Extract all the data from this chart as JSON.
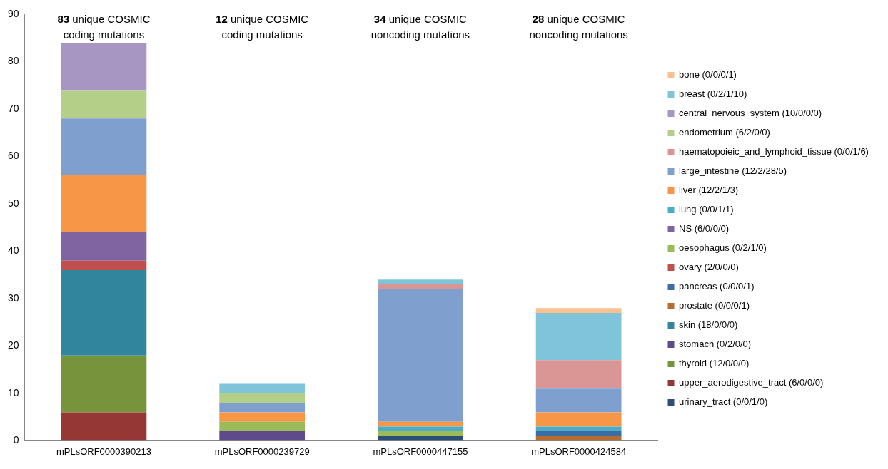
{
  "chart_data": {
    "type": "bar",
    "stacked": true,
    "categories": [
      "mPLsORF0000390213",
      "mPLsORF0000239729",
      "mPLsORF0000447155",
      "mPLsORF0000424584"
    ],
    "ylim": [
      0,
      90
    ],
    "yticks": [
      0,
      10,
      20,
      30,
      40,
      50,
      60,
      70,
      80,
      90
    ],
    "grid": false,
    "legend": "right",
    "annotations": [
      "83 unique COSMIC coding mutations",
      "12 unique COSMIC coding mutations",
      "34 unique COSMIC noncoding mutations",
      "28 unique COSMIC noncoding mutations"
    ],
    "series": [
      {
        "name": "urinary_tract (0/0/1/0)",
        "color": "#2c4d75",
        "values": [
          0,
          0,
          1,
          0
        ]
      },
      {
        "name": "upper_aerodigestive_tract (6/0/0/0)",
        "color": "#953735",
        "values": [
          6,
          0,
          0,
          0
        ]
      },
      {
        "name": "thyroid (12/0/0/0)",
        "color": "#77933c",
        "values": [
          12,
          0,
          0,
          0
        ]
      },
      {
        "name": "stomach (0/2/0/0)",
        "color": "#5f4b8b",
        "values": [
          0,
          2,
          0,
          0
        ]
      },
      {
        "name": "skin (18/0/0/0)",
        "color": "#31859c",
        "values": [
          18,
          0,
          0,
          0
        ]
      },
      {
        "name": "prostate (0/0/0/1)",
        "color": "#b66d31",
        "values": [
          0,
          0,
          0,
          1
        ]
      },
      {
        "name": "pancreas (0/0/0/1)",
        "color": "#3a6ea5",
        "values": [
          0,
          0,
          0,
          1
        ]
      },
      {
        "name": "ovary (2/0/0/0)",
        "color": "#c0504d",
        "values": [
          2,
          0,
          0,
          0
        ]
      },
      {
        "name": "oesophagus (0/2/1/0)",
        "color": "#9bbb59",
        "values": [
          0,
          2,
          1,
          0
        ]
      },
      {
        "name": "NS (6/0/0/0)",
        "color": "#8064a2",
        "values": [
          6,
          0,
          0,
          0
        ]
      },
      {
        "name": "lung (0/0/1/1)",
        "color": "#4bacc6",
        "values": [
          0,
          0,
          1,
          1
        ]
      },
      {
        "name": "liver (12/2/1/3)",
        "color": "#f79646",
        "values": [
          12,
          2,
          1,
          3
        ]
      },
      {
        "name": "large_intestine (12/2/28/5)",
        "color": "#7f9fcf",
        "values": [
          12,
          2,
          28,
          5
        ]
      },
      {
        "name": "haematopoieic_and_lymphoid_tissue (0/0/1/6)",
        "color": "#d99694",
        "values": [
          0,
          0,
          1,
          6
        ]
      },
      {
        "name": "endometrium (6/2/0/0)",
        "color": "#b3cf88",
        "values": [
          6,
          2,
          0,
          0
        ]
      },
      {
        "name": "central_nervous_system (10/0/0/0)",
        "color": "#a796c1",
        "values": [
          10,
          0,
          0,
          0
        ]
      },
      {
        "name": "breast (0/2/1/10)",
        "color": "#7fc4d8",
        "values": [
          0,
          2,
          1,
          10
        ]
      },
      {
        "name": "bone (0/0/0/1)",
        "color": "#fac090",
        "values": [
          0,
          0,
          0,
          1
        ]
      }
    ]
  }
}
